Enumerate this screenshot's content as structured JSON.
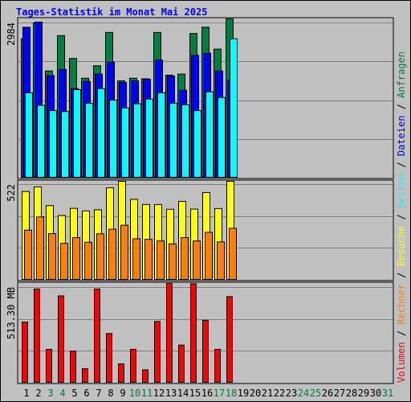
{
  "title": "Tages-Statistik im Monat Mai 2025",
  "chart_data": {
    "type": "bar",
    "x": [
      "1",
      "2",
      "3",
      "4",
      "5",
      "6",
      "7",
      "8",
      "9",
      "10",
      "11",
      "12",
      "13",
      "14",
      "15",
      "16",
      "17",
      "18",
      "19",
      "20",
      "21",
      "22",
      "23",
      "24",
      "25",
      "26",
      "27",
      "28",
      "29",
      "30",
      "31"
    ],
    "x_colors": [
      "#000000",
      "#000000",
      "#008040",
      "#008040",
      "#000000",
      "#000000",
      "#000000",
      "#000000",
      "#000000",
      "#008040",
      "#008040",
      "#000000",
      "#000000",
      "#000000",
      "#000000",
      "#000000",
      "#008040",
      "#008040",
      "#000000",
      "#000000",
      "#000000",
      "#000000",
      "#000000",
      "#008040",
      "#008040",
      "#000000",
      "#000000",
      "#000000",
      "#000000",
      "#000000",
      "#008040"
    ],
    "panels": [
      {
        "ymax_label": "2984",
        "ymax": 2984,
        "series": [
          {
            "name": "Anfragen",
            "color": "#008040",
            "values": [
              2680,
              2984,
              2060,
              2740,
              2300,
              1920,
              2160,
              2800,
              1870,
              1920,
              1910,
              2800,
              1980,
              2000,
              2780,
              2900,
              2480,
              3120
            ]
          },
          {
            "name": "Dateien",
            "color": "#0000ff",
            "values": [
              2900,
              3000,
              1970,
              2090,
              1720,
              1860,
              2000,
              2230,
              1840,
              1870,
              1900,
              2270,
              1960,
              1690,
              2360,
              2400,
              2060,
              1880
            ]
          },
          {
            "name": "Seiten",
            "color": "#00ffff",
            "values": [
              1640,
              1400,
              1300,
              1280,
              1700,
              1440,
              1720,
              1500,
              1350,
              1430,
              1520,
              1640,
              1440,
              1410,
              1300,
              1660,
              1550,
              2680
            ]
          }
        ]
      },
      {
        "ymax_label": "522",
        "ymax": 522,
        "series": [
          {
            "name": "Besuche",
            "color": "#ffff00",
            "values": [
              484,
              509,
              407,
              353,
              392,
              378,
              384,
              504,
              543,
              441,
              413,
              413,
              387,
              430,
              388,
              478,
              391,
              580
            ]
          },
          {
            "name": "Rechner",
            "color": "#ff8000",
            "values": [
              273,
              345,
              254,
              201,
              232,
              207,
              253,
              278,
              300,
              226,
              223,
              214,
              198,
              232,
              214,
              261,
              209,
              283
            ]
          }
        ]
      },
      {
        "ymax_label": "513.30 MB",
        "ymax": 513.3,
        "series": [
          {
            "name": "Volumen",
            "color": "#ff0000",
            "values": [
              327,
              505,
              181,
              468,
              171,
              77,
              505,
              266,
              103,
              181,
              71,
              331,
              664,
              204,
              533,
              337,
              181,
              464
            ]
          }
        ]
      }
    ],
    "legend": [
      "Volumen",
      "Rechner",
      "Besuche",
      "Seiten",
      "Dateien",
      "Anfragen"
    ],
    "legend_separator": " / ",
    "legend_colors": {
      "Volumen": "#ff0000",
      "Rechner": "#ff8000",
      "Besuche": "#ffff00",
      "Seiten": "#00ffff",
      "Dateien": "#0000ff",
      "Anfragen": "#008040"
    },
    "grid": true,
    "legend_placement": "right-vertical"
  }
}
